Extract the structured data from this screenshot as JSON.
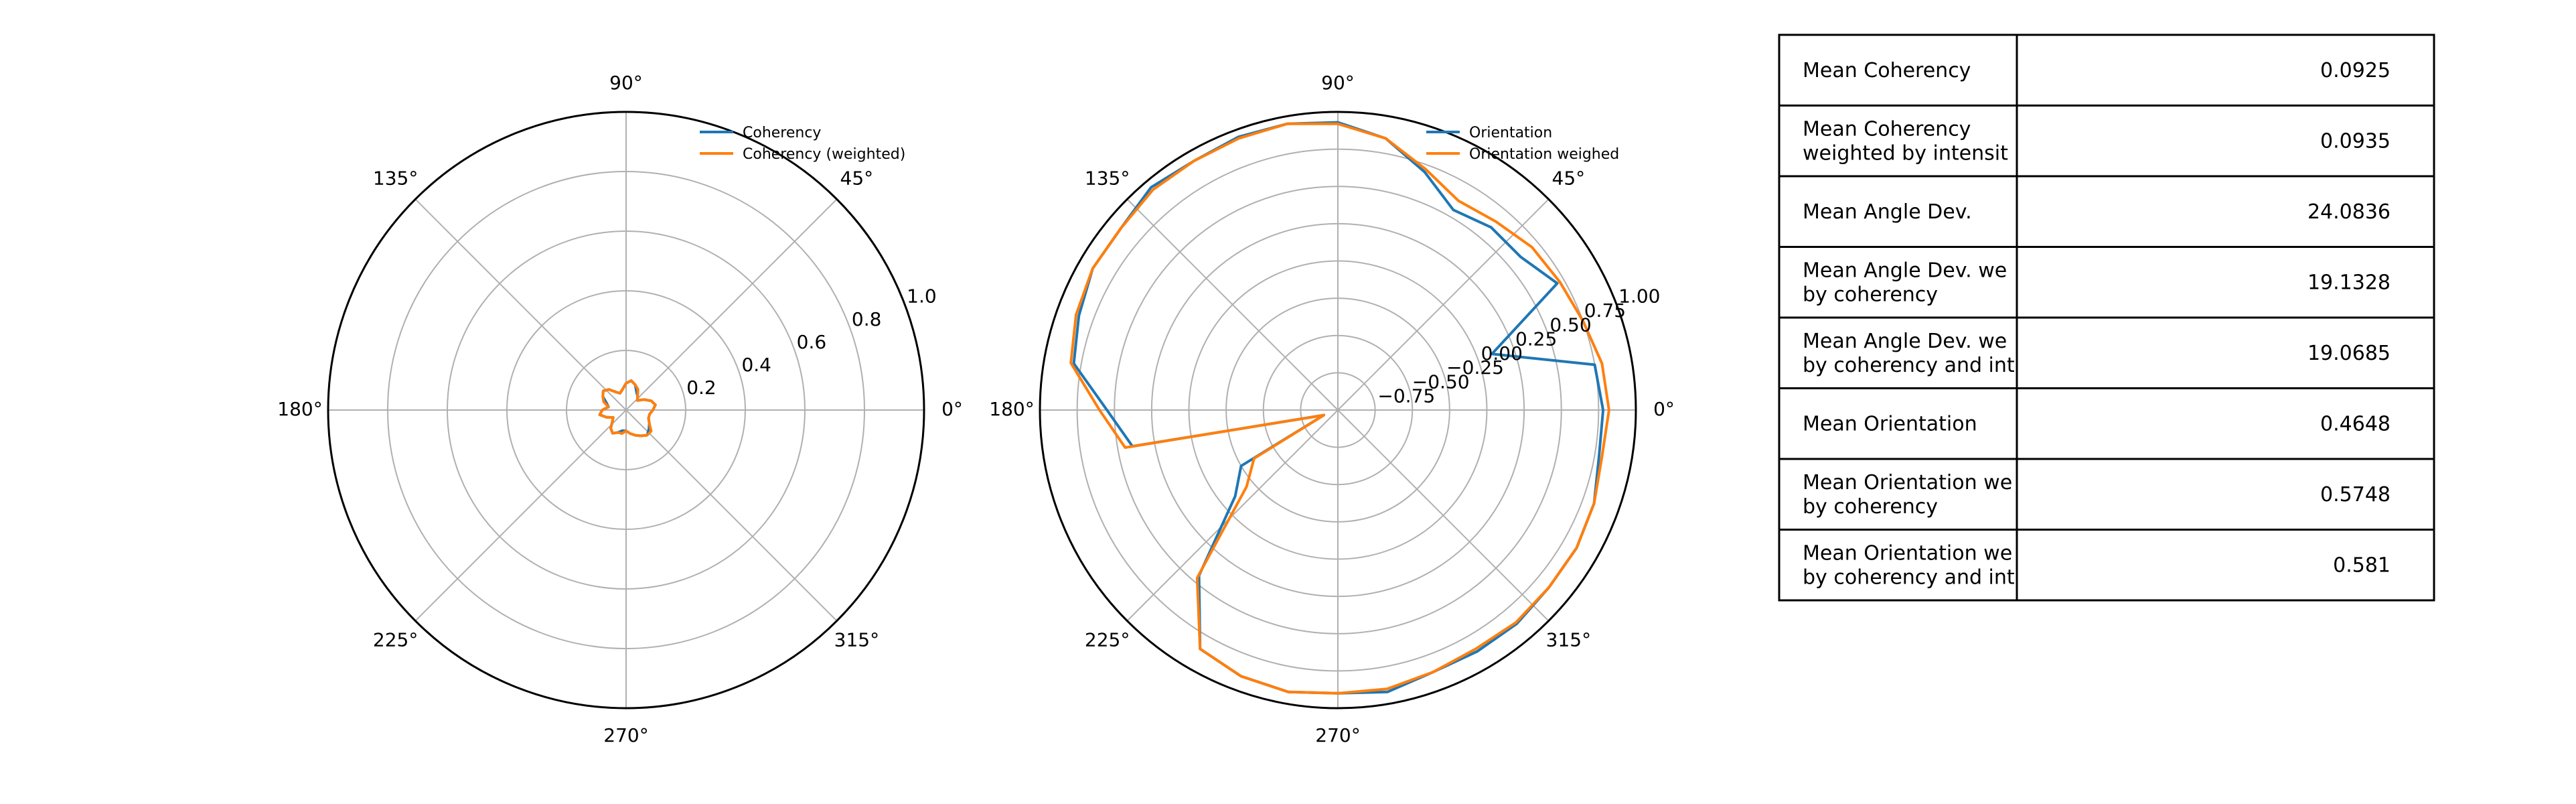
{
  "chart_data": [
    {
      "type": "polar-line",
      "radial_ticks": [
        "0.2",
        "0.4",
        "0.6",
        "0.8",
        "1.0"
      ],
      "angle_ticks": [
        "0°",
        "45°",
        "90°",
        "135°",
        "180°",
        "225°",
        "270°",
        "315°"
      ],
      "rlim": [
        0,
        1.0
      ],
      "grid": true,
      "legend_position": "upper-right",
      "theta_deg": [
        0,
        10,
        20,
        30,
        40,
        50,
        60,
        70,
        80,
        90,
        100,
        110,
        120,
        130,
        140,
        150,
        160,
        170,
        180,
        190,
        200,
        210,
        220,
        230,
        240,
        250,
        260,
        270,
        280,
        290,
        300,
        310,
        320,
        330,
        340,
        350
      ],
      "series": [
        {
          "name": "Coherency",
          "color": "#1f77b4",
          "values": [
            0.09,
            0.1,
            0.09,
            0.07,
            0.05,
            0.06,
            0.07,
            0.09,
            0.1,
            0.09,
            0.07,
            0.06,
            0.07,
            0.09,
            0.1,
            0.09,
            0.07,
            0.06,
            0.08,
            0.09,
            0.07,
            0.05,
            0.06,
            0.08,
            0.09,
            0.08,
            0.07,
            0.07,
            0.08,
            0.09,
            0.1,
            0.11,
            0.1,
            0.09,
            0.08,
            0.08
          ]
        },
        {
          "name": "Coherency (weighted)",
          "color": "#ff7f0e",
          "values": [
            0.09,
            0.1,
            0.09,
            0.07,
            0.05,
            0.06,
            0.08,
            0.09,
            0.1,
            0.09,
            0.07,
            0.06,
            0.07,
            0.09,
            0.1,
            0.09,
            0.08,
            0.06,
            0.08,
            0.09,
            0.07,
            0.05,
            0.06,
            0.08,
            0.09,
            0.08,
            0.08,
            0.07,
            0.08,
            0.09,
            0.1,
            0.11,
            0.11,
            0.09,
            0.08,
            0.08
          ]
        }
      ]
    },
    {
      "type": "polar-line",
      "radial_ticks": [
        "−0.75",
        "−0.50",
        "−0.25",
        "0.00",
        "0.25",
        "0.50",
        "0.75",
        "1.00"
      ],
      "angle_ticks": [
        "0°",
        "45°",
        "90°",
        "135°",
        "180°",
        "225°",
        "270°",
        "315°"
      ],
      "rlim": [
        -1.0,
        1.0
      ],
      "grid": true,
      "legend_position": "upper-right",
      "theta_deg": [
        0,
        10,
        20,
        30,
        40,
        50,
        60,
        70,
        80,
        90,
        100,
        110,
        120,
        130,
        140,
        150,
        160,
        170,
        180,
        190,
        200,
        210,
        220,
        230,
        240,
        250,
        260,
        270,
        280,
        290,
        300,
        310,
        320,
        330,
        340,
        350
      ],
      "series": [
        {
          "name": "Orientation",
          "color": "#1f77b4",
          "values": [
            0.78,
            0.75,
            0.1,
            0.7,
            0.6,
            0.6,
            0.55,
            0.7,
            0.85,
            0.93,
            0.95,
            0.95,
            0.93,
            0.95,
            0.9,
            0.9,
            0.85,
            0.8,
            0.55,
            0.4,
            -0.9,
            -0.25,
            -0.1,
            0.45,
            0.85,
            0.9,
            0.92,
            0.9,
            0.92,
            0.87,
            0.87,
            0.87,
            0.85,
            0.85,
            0.83,
            0.78
          ]
        },
        {
          "name": "Orientation weighed",
          "color": "#ff7f0e",
          "values": [
            0.82,
            0.8,
            0.75,
            0.72,
            0.7,
            0.65,
            0.62,
            0.72,
            0.85,
            0.92,
            0.95,
            0.94,
            0.93,
            0.93,
            0.9,
            0.9,
            0.87,
            0.82,
            0.6,
            0.45,
            -0.9,
            -0.35,
            -0.2,
            0.47,
            0.85,
            0.9,
            0.92,
            0.9,
            0.9,
            0.87,
            0.85,
            0.86,
            0.85,
            0.85,
            0.83,
            0.8
          ]
        }
      ]
    },
    {
      "type": "table",
      "rows": [
        {
          "label": [
            "Mean Coherency"
          ],
          "value": "0.0925"
        },
        {
          "label": [
            "Mean Coherency",
            "weighted by intensit"
          ],
          "value": "0.0935"
        },
        {
          "label": [
            "Mean Angle Dev."
          ],
          "value": "24.0836"
        },
        {
          "label": [
            "Mean Angle Dev. we",
            "by coherency"
          ],
          "value": "19.1328"
        },
        {
          "label": [
            "Mean Angle Dev. we",
            "by coherency and int"
          ],
          "value": "19.0685"
        },
        {
          "label": [
            "Mean Orientation"
          ],
          "value": "0.4648"
        },
        {
          "label": [
            "Mean Orientation we",
            "by coherency"
          ],
          "value": "0.5748"
        },
        {
          "label": [
            "Mean Orientation we",
            "by coherency and int"
          ],
          "value": "0.581"
        }
      ]
    }
  ]
}
